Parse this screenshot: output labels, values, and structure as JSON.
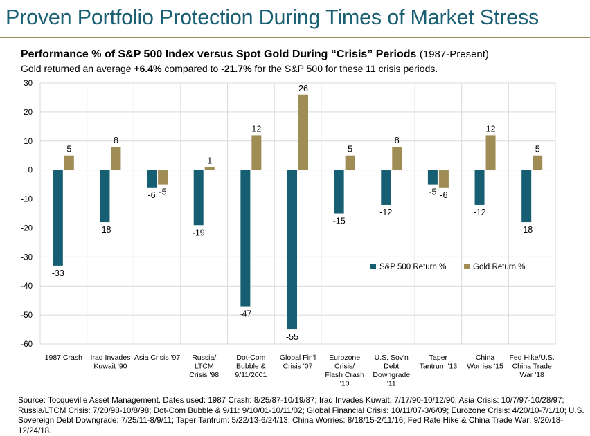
{
  "page": {
    "title": "Proven Portfolio Protection During Times of Market Stress",
    "heading_bold": "Performance % of S&P 500 Index versus Spot Gold During “Crisis” Periods",
    "heading_period": "(1987-Present)",
    "subtitle_pre": "Gold returned an average ",
    "subtitle_gold": "+6.4%",
    "subtitle_mid": " compared to ",
    "subtitle_sp": "-21.7%",
    "subtitle_post": " for the S&P 500 for these 11 crisis periods.",
    "source": "Source: Tocqueville Asset Management. Dates used: 1987 Crash: 8/25/87-10/19/87; Iraq Invades Kuwait: 7/17/90-10/12/90; Asia Crisis: 10/7/97-10/28/97; Russia/LTCM Crisis: 7/20/98-10/8/98; Dot-Com Bubble & 9/11: 9/10/01-10/11/02; Global Financial Crisis: 10/11/07-3/6/09; Eurozone Crisis: 4/20/10-7/1/10; U.S. Sovereign Debt Downgrade: 7/25/11-8/9/11; Taper Tantrum: 5/22/13-6/24/13; China Worries: 8/18/15-2/11/16; Fed Rate Hike & China Trade War: 9/20/18-12/24/18."
  },
  "colors": {
    "sp500": "#165e72",
    "gold": "#a08c55",
    "title": "#1a5f73",
    "rule": "#9a8a55",
    "grid": "#d9d9d9",
    "plot_bg": "#ffffff"
  },
  "chart_data": {
    "type": "bar",
    "title": "Performance % of S&P 500 Index versus Spot Gold During “Crisis” Periods",
    "xlabel": "",
    "ylabel": "",
    "ylim": [
      -60,
      30
    ],
    "yticks": [
      "30",
      "20",
      "10",
      "0",
      "-10",
      "-20",
      "-30",
      "-40",
      "-50",
      "-60"
    ],
    "ytick_values": [
      30,
      20,
      10,
      0,
      -10,
      -20,
      -30,
      -40,
      -50,
      -60
    ],
    "grid": true,
    "legend_position": "lower-right",
    "categories": [
      [
        "1987 Crash"
      ],
      [
        "Iraq Invades",
        "Kuwait '90"
      ],
      [
        "Asia Crisis '97"
      ],
      [
        "Russia/",
        "LTCM",
        "Crisis '98"
      ],
      [
        "Dot-Com",
        "Bubble &",
        "9/11/2001"
      ],
      [
        "Global Fin'l",
        "Crisis '07"
      ],
      [
        "Eurozone",
        "Crisis/",
        "Flash Crash",
        "'10"
      ],
      [
        "U.S. Sov'n",
        "Debt",
        "Downgrade",
        "'11"
      ],
      [
        "Taper",
        "Tantrum '13"
      ],
      [
        "China",
        "Worries '15"
      ],
      [
        "Fed Hike/U.S.",
        "China Trade",
        "War '18"
      ]
    ],
    "series": [
      {
        "name": "S&P 500 Return %",
        "values": [
          -33,
          -18,
          -6,
          -19,
          -47,
          -55,
          -15,
          -12,
          -5,
          -12,
          -18
        ],
        "labels": [
          "-33",
          "-18",
          "-6",
          "-19",
          "-47",
          "-55",
          "-15",
          "-12",
          "-5",
          "-12",
          "-18"
        ]
      },
      {
        "name": "Gold Return %",
        "values": [
          5,
          8,
          -5,
          1,
          12,
          26,
          5,
          8,
          -6,
          12,
          5
        ],
        "labels": [
          "5",
          "8",
          "-5",
          "1",
          "12",
          "26",
          "5",
          "8",
          "-6",
          "12",
          "5"
        ]
      }
    ]
  }
}
